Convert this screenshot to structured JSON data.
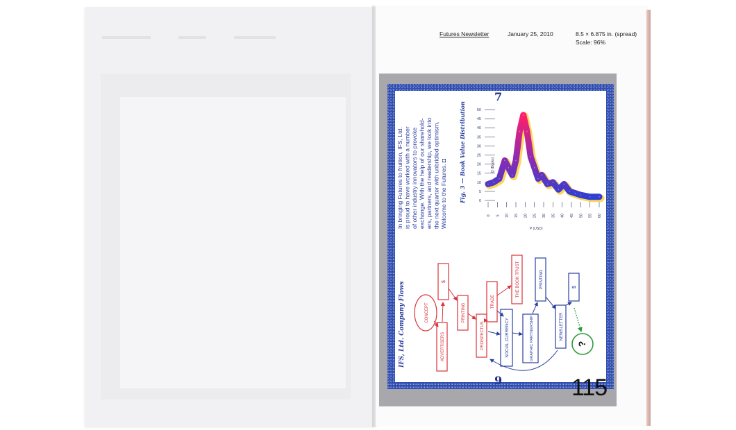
{
  "header": {
    "title": "Futures Newsletter",
    "date": "January 25, 2010",
    "size": "8.5 × 6.875 in. (spread)",
    "scale": "Scale: 96%"
  },
  "folios": {
    "top": "7",
    "bottom": "9"
  },
  "page_number": "115",
  "intro_lines": [
    "In bringing Futures to fruition, IFS, Ltd.",
    "is proud to have worked with a number",
    "of other industry innovators to provoke",
    "exchange. With the help of our sharehold-",
    "ers, partners, and readership, we look into",
    "the next quarter with unbridled optimism.",
    "Welcome to the Futures. ◘"
  ],
  "chart_title": "Fig. 3 — Book Value Distribution",
  "chart_data": {
    "type": "line",
    "title": "Fig. 3 — Book Value Distribution",
    "xlabel": "P (USD)",
    "ylabel": "Q (Books)",
    "xlim": [
      0,
      60
    ],
    "ylim": [
      0,
      50
    ],
    "x_ticks": [
      0,
      5,
      10,
      15,
      20,
      25,
      30,
      35,
      40,
      45,
      50,
      55,
      60
    ],
    "y_ticks": [
      0,
      5,
      10,
      15,
      20,
      25,
      30,
      35,
      40,
      45,
      50
    ],
    "grid": false,
    "x": [
      0,
      3,
      6,
      9,
      11,
      13,
      15,
      17,
      19,
      21,
      23,
      25,
      27,
      29,
      32,
      35,
      38,
      41,
      44,
      47,
      50,
      55,
      60
    ],
    "y": [
      9,
      10,
      12,
      22,
      18,
      14,
      22,
      38,
      47,
      38,
      24,
      18,
      12,
      14,
      9,
      10,
      6,
      9,
      5,
      4,
      3,
      2,
      2
    ]
  },
  "flow": {
    "title": "IFS, Ltd. Company Flows",
    "nodes": [
      {
        "id": "concept",
        "label": "CONCEPT",
        "shape": "ellipse",
        "color": "#d9323a"
      },
      {
        "id": "dollar1",
        "label": "$",
        "shape": "rect",
        "color": "#d9323a"
      },
      {
        "id": "advertisers",
        "label": "ADVERTISERS",
        "shape": "rect",
        "color": "#d9323a"
      },
      {
        "id": "printing1",
        "label": "PRINTING",
        "shape": "rect",
        "color": "#d9323a"
      },
      {
        "id": "prospectus",
        "label": "PROSPECTUS",
        "shape": "rect",
        "color": "#d9323a"
      },
      {
        "id": "trade",
        "label": "TRADE",
        "shape": "rect",
        "color": "#d9323a"
      },
      {
        "id": "booktrust",
        "label": "THE BOOK TRUST",
        "shape": "rect",
        "color": "#d9323a"
      },
      {
        "id": "social",
        "label": "SOCIAL CURRENCY",
        "shape": "rect",
        "color": "#2b3f9e"
      },
      {
        "id": "graphic",
        "label": "GRAPHIC PARTNERSHIP",
        "shape": "rect",
        "color": "#2b3f9e"
      },
      {
        "id": "printing2",
        "label": "PRINTING",
        "shape": "rect",
        "color": "#2b3f9e"
      },
      {
        "id": "newsletter",
        "label": "NEWSLETTER",
        "shape": "rect",
        "color": "#2b3f9e"
      },
      {
        "id": "dollar2",
        "label": "$",
        "shape": "rect",
        "color": "#2b3f9e"
      },
      {
        "id": "question",
        "label": "?",
        "shape": "circle",
        "color": "#2e9a3c"
      }
    ]
  },
  "colors": {
    "red": "#d9323a",
    "blue": "#2b3f9e",
    "green": "#2e9a3c",
    "frame": "#2f4db0"
  }
}
